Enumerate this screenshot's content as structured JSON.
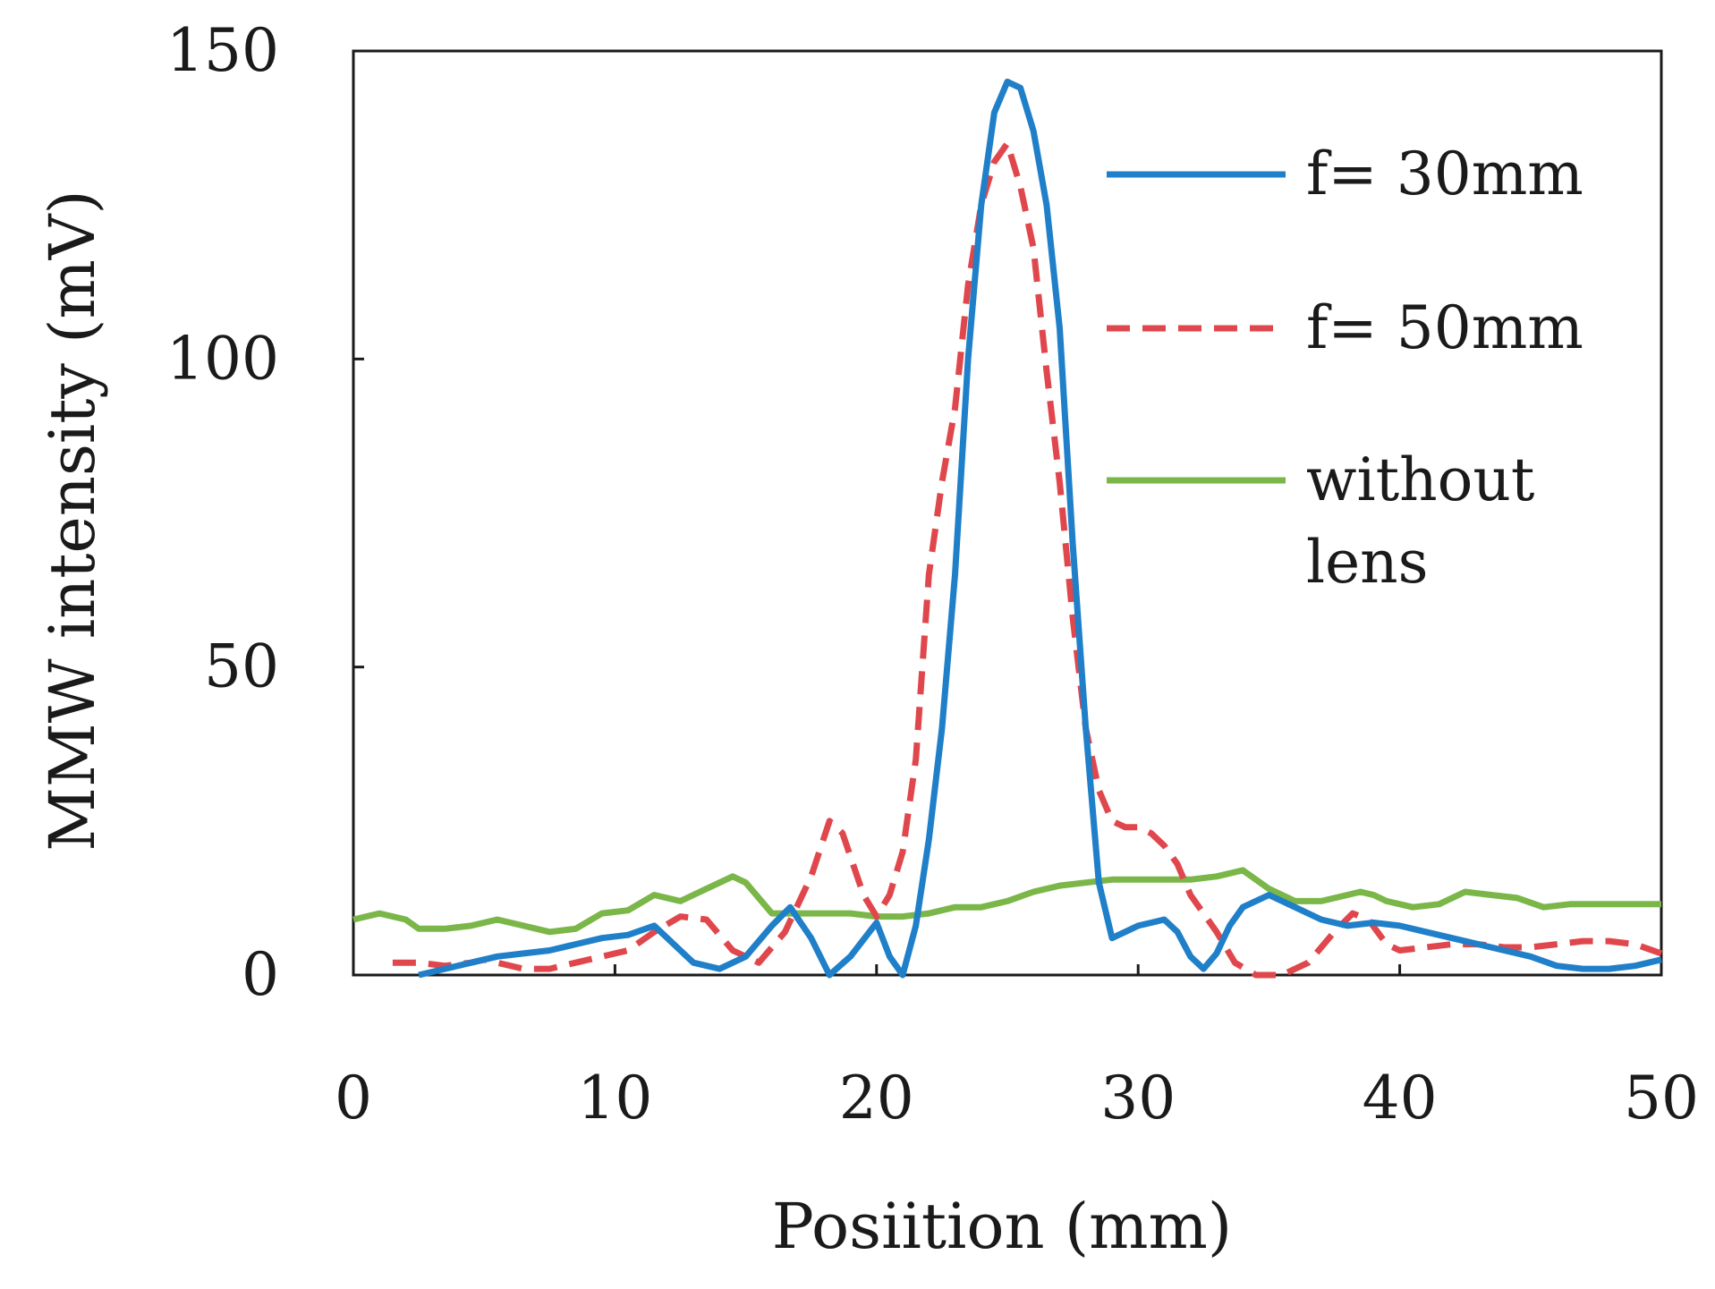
{
  "chart_data": {
    "type": "line",
    "title": "",
    "xlabel": "Posiition (mm)",
    "ylabel": "MMW intensity (mV)",
    "xlim": [
      0,
      50
    ],
    "ylim": [
      0,
      150
    ],
    "xticks": [
      0,
      10,
      20,
      30,
      40,
      50
    ],
    "yticks": [
      0,
      50,
      100,
      150
    ],
    "grid": false,
    "legend_position": "top-right",
    "series": [
      {
        "name": "f= 30mm",
        "color": "#1f7fc8",
        "dash": "solid",
        "points": [
          [
            2.5,
            0
          ],
          [
            3.5,
            1
          ],
          [
            4.5,
            2
          ],
          [
            5.5,
            3
          ],
          [
            6.5,
            3.5
          ],
          [
            7.5,
            4
          ],
          [
            8.5,
            5
          ],
          [
            9.5,
            6
          ],
          [
            10.5,
            6.5
          ],
          [
            11.5,
            8
          ],
          [
            12.5,
            4
          ],
          [
            13,
            2
          ],
          [
            14,
            1
          ],
          [
            15,
            3
          ],
          [
            16,
            8
          ],
          [
            16.7,
            11
          ],
          [
            17.5,
            6
          ],
          [
            18.2,
            0
          ],
          [
            19,
            3
          ],
          [
            20,
            8.5
          ],
          [
            20.5,
            3
          ],
          [
            21,
            0
          ],
          [
            21.5,
            8
          ],
          [
            22,
            22
          ],
          [
            22.5,
            40
          ],
          [
            23,
            65
          ],
          [
            23.5,
            100
          ],
          [
            24,
            125
          ],
          [
            24.5,
            140
          ],
          [
            25,
            145
          ],
          [
            25.5,
            144
          ],
          [
            26,
            137
          ],
          [
            26.5,
            125
          ],
          [
            27,
            105
          ],
          [
            27.5,
            70
          ],
          [
            28,
            40
          ],
          [
            28.5,
            15
          ],
          [
            29,
            6
          ],
          [
            29.5,
            7
          ],
          [
            30,
            8
          ],
          [
            30.5,
            8.5
          ],
          [
            31,
            9
          ],
          [
            31.5,
            7
          ],
          [
            32,
            3
          ],
          [
            32.5,
            1
          ],
          [
            33,
            3.5
          ],
          [
            33.5,
            8
          ],
          [
            34,
            11
          ],
          [
            35,
            13
          ],
          [
            36,
            11
          ],
          [
            37,
            9
          ],
          [
            38,
            8
          ],
          [
            39,
            8.5
          ],
          [
            40,
            8
          ],
          [
            41,
            7
          ],
          [
            42,
            6
          ],
          [
            43,
            5
          ],
          [
            44,
            4
          ],
          [
            45,
            3
          ],
          [
            46,
            1.5
          ],
          [
            47,
            1
          ],
          [
            48,
            1
          ],
          [
            49,
            1.5
          ],
          [
            50,
            2.5
          ]
        ]
      },
      {
        "name": "f= 50mm",
        "color": "#e0474c",
        "dash": "dashed",
        "points": [
          [
            1.5,
            2
          ],
          [
            2.5,
            2
          ],
          [
            3.5,
            1.5
          ],
          [
            4.5,
            2
          ],
          [
            5,
            2.5
          ],
          [
            5.5,
            2
          ],
          [
            6.5,
            1
          ],
          [
            7.5,
            1
          ],
          [
            8.5,
            2
          ],
          [
            9.5,
            3
          ],
          [
            10.5,
            4
          ],
          [
            11.5,
            7
          ],
          [
            12.5,
            9.5
          ],
          [
            13.5,
            9
          ],
          [
            14.5,
            4
          ],
          [
            15.5,
            2
          ],
          [
            16.5,
            7
          ],
          [
            17.5,
            16
          ],
          [
            18.2,
            25
          ],
          [
            18.7,
            23
          ],
          [
            19.5,
            13
          ],
          [
            20,
            9.5
          ],
          [
            20.5,
            13
          ],
          [
            21,
            20
          ],
          [
            21.5,
            35
          ],
          [
            22,
            65
          ],
          [
            22.5,
            80
          ],
          [
            23,
            92
          ],
          [
            23.5,
            112
          ],
          [
            24,
            125
          ],
          [
            24.5,
            132
          ],
          [
            25,
            135
          ],
          [
            25.5,
            128
          ],
          [
            26,
            118
          ],
          [
            26.5,
            98
          ],
          [
            27,
            80
          ],
          [
            27.5,
            58
          ],
          [
            28,
            40
          ],
          [
            28.5,
            30
          ],
          [
            29,
            25
          ],
          [
            29.5,
            24
          ],
          [
            30,
            24
          ],
          [
            30.5,
            23
          ],
          [
            31,
            21
          ],
          [
            31.5,
            18
          ],
          [
            32,
            13
          ],
          [
            33,
            7
          ],
          [
            33.7,
            2
          ],
          [
            34.5,
            0
          ],
          [
            35.5,
            0
          ],
          [
            36.5,
            2
          ],
          [
            37.5,
            7
          ],
          [
            38.2,
            10
          ],
          [
            38.8,
            9
          ],
          [
            39.5,
            5
          ],
          [
            40,
            4
          ],
          [
            41,
            4.5
          ],
          [
            42,
            5
          ],
          [
            43,
            5
          ],
          [
            44,
            4.5
          ],
          [
            45,
            4.5
          ],
          [
            46,
            5
          ],
          [
            47,
            5.5
          ],
          [
            48,
            5.5
          ],
          [
            49,
            5
          ],
          [
            50,
            3.5
          ]
        ]
      },
      {
        "name": "without lens",
        "color": "#7ab648",
        "dash": "solid",
        "points": [
          [
            0,
            9
          ],
          [
            1,
            10
          ],
          [
            2,
            9
          ],
          [
            2.5,
            7.5
          ],
          [
            3.5,
            7.5
          ],
          [
            4.5,
            8
          ],
          [
            5.5,
            9
          ],
          [
            6.5,
            8
          ],
          [
            7.5,
            7
          ],
          [
            8.5,
            7.5
          ],
          [
            9.5,
            10
          ],
          [
            10.5,
            10.5
          ],
          [
            11.5,
            13
          ],
          [
            12.5,
            12
          ],
          [
            13.5,
            14
          ],
          [
            14.5,
            16
          ],
          [
            15,
            15
          ],
          [
            16,
            10
          ],
          [
            17,
            10
          ],
          [
            18,
            10
          ],
          [
            19,
            10
          ],
          [
            20,
            9.5
          ],
          [
            21,
            9.5
          ],
          [
            22,
            10
          ],
          [
            23,
            11
          ],
          [
            24,
            11
          ],
          [
            25,
            12
          ],
          [
            26,
            13.5
          ],
          [
            27,
            14.5
          ],
          [
            28,
            15
          ],
          [
            29,
            15.5
          ],
          [
            30,
            15.5
          ],
          [
            31,
            15.5
          ],
          [
            32,
            15.5
          ],
          [
            33,
            16
          ],
          [
            34,
            17
          ],
          [
            35,
            14
          ],
          [
            36,
            12
          ],
          [
            37,
            12
          ],
          [
            38,
            13
          ],
          [
            38.5,
            13.5
          ],
          [
            39,
            13
          ],
          [
            39.5,
            12
          ],
          [
            40.5,
            11
          ],
          [
            41.5,
            11.5
          ],
          [
            42.5,
            13.5
          ],
          [
            43.5,
            13
          ],
          [
            44.5,
            12.5
          ],
          [
            45.5,
            11
          ],
          [
            46.5,
            11.5
          ],
          [
            47.5,
            11.5
          ],
          [
            48.5,
            11.5
          ],
          [
            50,
            11.5
          ]
        ]
      }
    ],
    "legend": [
      {
        "label": "f= 30mm",
        "series": 0
      },
      {
        "label": "f= 50mm",
        "series": 1
      },
      {
        "label_lines": [
          "without",
          "lens"
        ],
        "series": 2
      }
    ]
  }
}
